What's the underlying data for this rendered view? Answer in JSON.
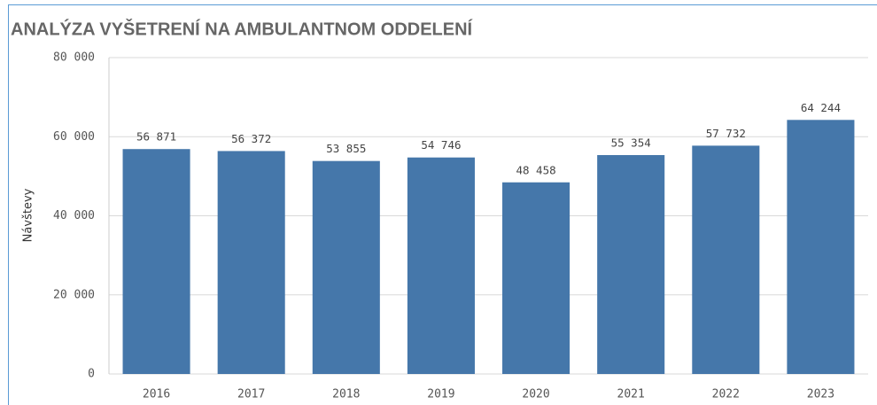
{
  "chart_data": {
    "type": "bar",
    "title": "ANALÝZA VYŠETRENÍ NA AMBULANTNOM ODDELENÍ",
    "y_label": "Návštevy",
    "categories": [
      "2016",
      "2017",
      "2018",
      "2019",
      "2020",
      "2021",
      "2022",
      "2023"
    ],
    "values": [
      56871,
      56372,
      53855,
      54746,
      48458,
      55354,
      57732,
      64244
    ],
    "value_labels": [
      "56 871",
      "56 372",
      "53 855",
      "54 746",
      "48 458",
      "55 354",
      "57 732",
      "64 244"
    ],
    "color": "#4577aa",
    "ylim": [
      0,
      80000
    ],
    "yticks": [
      0,
      {
        "value": 20000,
        "label": "20 000"
      },
      {
        "value": 40000,
        "label": "40 000"
      },
      {
        "value": 60000,
        "label": "60 000"
      },
      {
        "value": 80000,
        "label": "80 000"
      }
    ],
    "grid": true
  }
}
